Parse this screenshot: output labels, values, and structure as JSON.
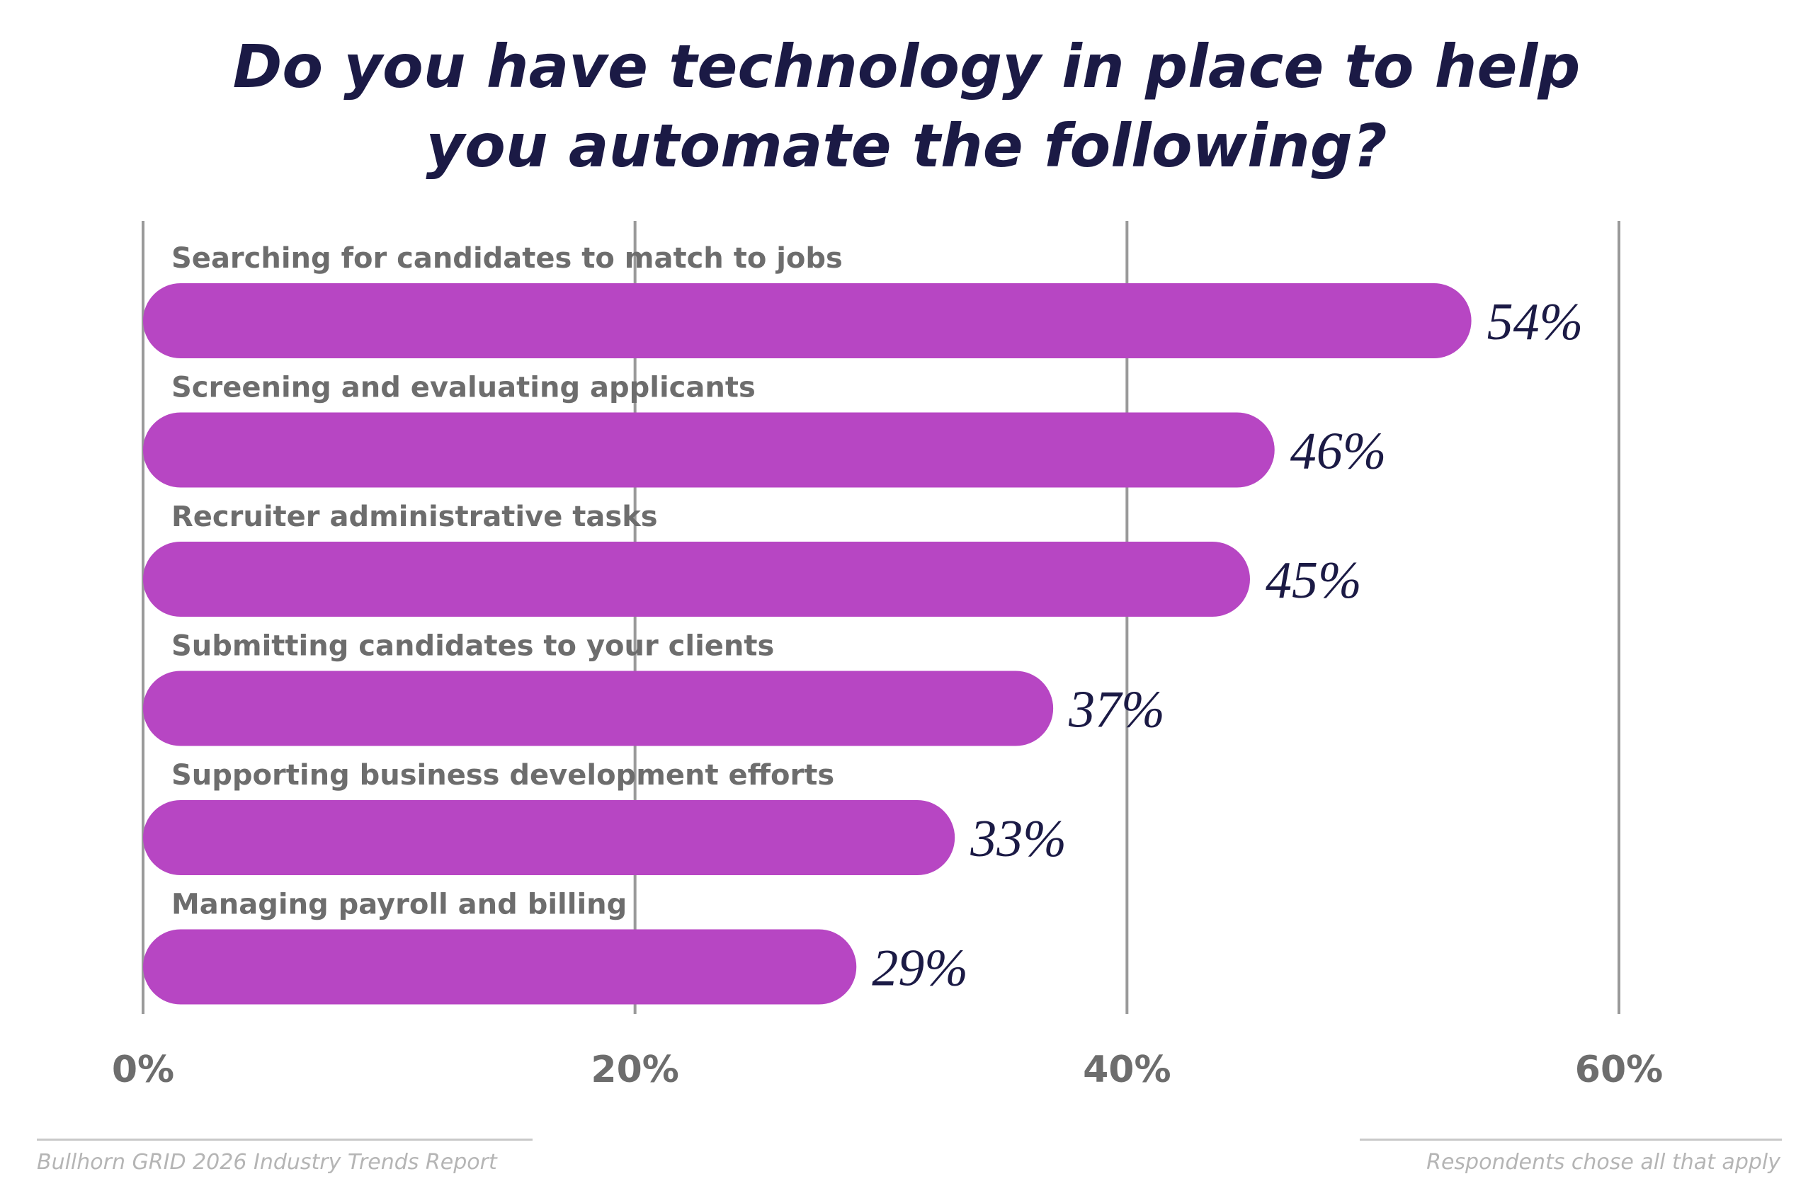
{
  "chart_data": {
    "type": "bar",
    "orientation": "horizontal",
    "title_lines": [
      "Do you have technology in place to help",
      "you automate the following?"
    ],
    "categories": [
      "Searching for candidates to match to jobs",
      "Screening and evaluating applicants",
      "Recruiter administrative tasks",
      "Submitting candidates to your clients",
      "Supporting business development efforts",
      "Managing payroll and billing"
    ],
    "values": [
      54,
      46,
      45,
      37,
      33,
      29
    ],
    "value_labels": [
      "54%",
      "46%",
      "45%",
      "37%",
      "33%",
      "29%"
    ],
    "xlim": [
      0,
      60
    ],
    "x_ticks": [
      0,
      20,
      40,
      60
    ],
    "x_tick_labels": [
      "0%",
      "20%",
      "40%",
      "60%"
    ],
    "grid": true,
    "legend": "none",
    "colors": {
      "bar": "#b746c3",
      "title": "#1b1a45",
      "value_label": "#1b1a45",
      "category_label": "#6d6d6d",
      "gridline": "#9a9a9a"
    }
  },
  "footer": {
    "source": "Bullhorn GRID 2026 Industry Trends Report",
    "note": "Respondents chose all that apply"
  }
}
